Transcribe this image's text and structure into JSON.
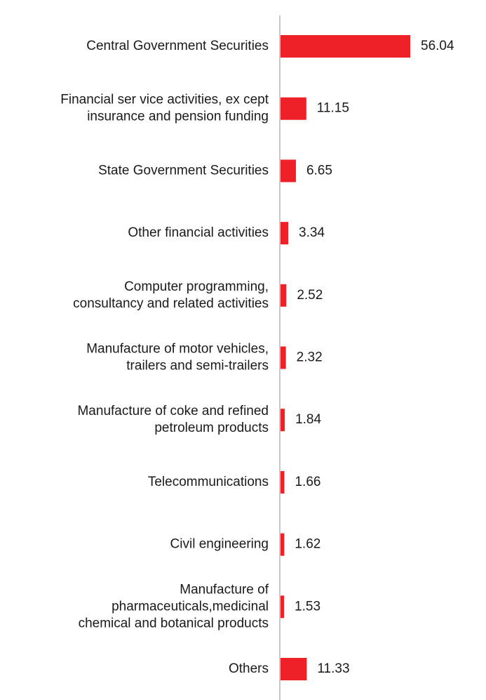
{
  "chart_data": {
    "type": "bar",
    "orientation": "horizontal",
    "title": "",
    "xlabel": "",
    "ylabel": "",
    "grid": false,
    "legend": "none",
    "bar_color": "#ee2129",
    "axis_color": "#c8c8c8",
    "xlim": [
      0,
      56.04
    ],
    "categories": [
      [
        "Central Government Securities"
      ],
      [
        "Financial ser vice activities, ex cept",
        "insurance and pension funding"
      ],
      [
        "State  Government Securities"
      ],
      [
        "Other financial activities"
      ],
      [
        "Computer programming,",
        "consultancy and related activities"
      ],
      [
        "Manufacture of motor vehicles,",
        "trailers and semi-trailers"
      ],
      [
        "Manufacture of coke and refined",
        "petroleum products"
      ],
      [
        "Telecommunications"
      ],
      [
        "Civil engineering"
      ],
      [
        "Manufacture of",
        "pharmaceuticals,medicinal",
        "chemical and botanical products"
      ],
      [
        "Others"
      ]
    ],
    "values": [
      56.04,
      11.15,
      6.65,
      3.34,
      2.52,
      2.32,
      1.84,
      1.66,
      1.62,
      1.53,
      11.33
    ],
    "value_labels": [
      "56.04",
      "11.15",
      "6.65",
      "3.34",
      "2.52",
      "2.32",
      "1.84",
      "1.66",
      "1.62",
      "1.53",
      "11.33"
    ]
  }
}
